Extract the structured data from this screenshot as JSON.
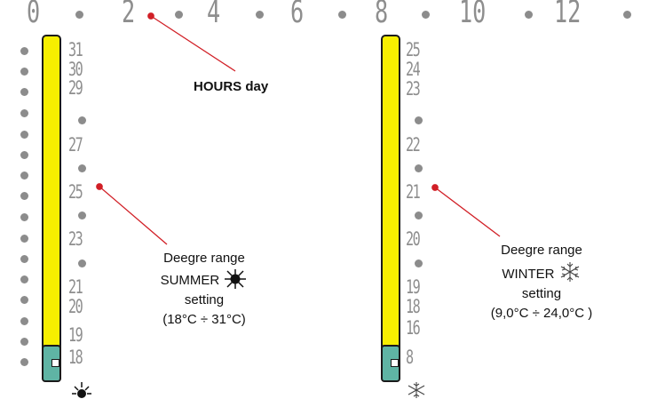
{
  "hours_axis": {
    "label": "HOURS day",
    "values": [
      "0",
      "2",
      "4",
      "6",
      "8",
      "10",
      "12"
    ]
  },
  "summer": {
    "scale_labels": [
      "31",
      "30",
      "29",
      "27",
      "25",
      "23",
      "21",
      "20",
      "19",
      "18"
    ],
    "caption": {
      "line1": "Deegre range",
      "line2": "SUMMER",
      "line3": "setting",
      "line4": "(18°C ÷ 31°C)"
    },
    "icon": "sun-icon"
  },
  "winter": {
    "scale_labels": [
      "25",
      "24",
      "23",
      "22",
      "21",
      "20",
      "19",
      "18",
      "16",
      "8"
    ],
    "caption": {
      "line1": "Deegre range",
      "line2": "WINTER",
      "line3": "setting",
      "line4": "(9,0°C ÷ 24,0°C )"
    },
    "icon": "snowflake-icon"
  },
  "colors": {
    "bar": "#f7ef00",
    "bar_cap": "#5fb4a4",
    "leader_line": "#d11f26",
    "digits": "#8e8e8e",
    "dots": "#8c8c8c"
  }
}
